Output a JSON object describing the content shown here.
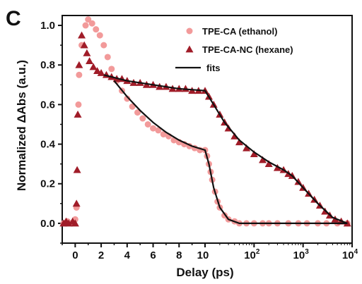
{
  "panel_label": "C",
  "colors": {
    "ethanol": "#f29a9a",
    "hexane": "#a01c28",
    "fit": "#111111",
    "axis": "#111111"
  },
  "chart_data": {
    "type": "scatter",
    "xlabel": "Delay (ps)",
    "ylabel": "Normalized ΔAbs (a.u.)",
    "x_scale": "linear from -1 to 10 ps, logarithmic from 10 to 10000 ps",
    "xlim": [
      -1,
      10000
    ],
    "ylim": [
      -0.1,
      1.05
    ],
    "x_ticks_linear": [
      "0",
      "2",
      "4",
      "6",
      "8"
    ],
    "x_ticks_log": [
      {
        "base": "10",
        "exp": ""
      },
      {
        "base": "10",
        "exp": "2"
      },
      {
        "base": "10",
        "exp": "3"
      },
      {
        "base": "10",
        "exp": "4"
      }
    ],
    "y_ticks": [
      "0.0",
      "0.2",
      "0.4",
      "0.6",
      "0.8",
      "1.0"
    ],
    "legend_position": "top-right",
    "legend": [
      {
        "label": "TPE-CA (ethanol)",
        "marker": "circle"
      },
      {
        "label": "TPE-CA-NC (hexane)",
        "marker": "triangle"
      },
      {
        "label": "fits",
        "marker": "line"
      }
    ],
    "series": [
      {
        "name": "TPE-CA (ethanol)",
        "marker": "circle",
        "points": [
          [
            -0.9,
            0.0
          ],
          [
            -0.6,
            0.01
          ],
          [
            -0.3,
            0.0
          ],
          [
            0.0,
            0.02
          ],
          [
            0.1,
            0.08
          ],
          [
            0.25,
            0.6
          ],
          [
            0.3,
            0.75
          ],
          [
            0.5,
            0.9
          ],
          [
            0.8,
            1.0
          ],
          [
            1.0,
            1.03
          ],
          [
            1.3,
            1.01
          ],
          [
            1.6,
            0.98
          ],
          [
            1.9,
            0.95
          ],
          [
            2.2,
            0.9
          ],
          [
            2.5,
            0.84
          ],
          [
            2.8,
            0.78
          ],
          [
            3.2,
            0.72
          ],
          [
            3.6,
            0.67
          ],
          [
            4.0,
            0.63
          ],
          [
            4.4,
            0.59
          ],
          [
            4.8,
            0.56
          ],
          [
            5.2,
            0.53
          ],
          [
            5.6,
            0.5
          ],
          [
            6.0,
            0.48
          ],
          [
            6.4,
            0.47
          ],
          [
            6.8,
            0.45
          ],
          [
            7.2,
            0.44
          ],
          [
            7.6,
            0.42
          ],
          [
            8.0,
            0.41
          ],
          [
            8.4,
            0.4
          ],
          [
            8.8,
            0.39
          ],
          [
            9.2,
            0.38
          ],
          [
            9.6,
            0.37
          ],
          [
            10,
            0.37
          ],
          [
            11,
            0.34
          ],
          [
            12,
            0.3
          ],
          [
            13,
            0.26
          ],
          [
            14,
            0.22
          ],
          [
            16,
            0.16
          ],
          [
            18,
            0.11
          ],
          [
            20,
            0.08
          ],
          [
            25,
            0.04
          ],
          [
            30,
            0.02
          ],
          [
            40,
            0.01
          ],
          [
            50,
            0.0
          ],
          [
            70,
            0.0
          ],
          [
            100,
            0.0
          ],
          [
            150,
            0.0
          ],
          [
            200,
            0.0
          ],
          [
            300,
            0.0
          ],
          [
            500,
            0.0
          ],
          [
            800,
            0.0
          ],
          [
            1200,
            0.0
          ],
          [
            2000,
            0.0
          ],
          [
            3000,
            0.0
          ],
          [
            5000,
            0.0
          ],
          [
            8000,
            0.0
          ]
        ]
      },
      {
        "name": "TPE-CA-NC (hexane)",
        "marker": "triangle",
        "points": [
          [
            -0.9,
            0.0
          ],
          [
            -0.7,
            0.01
          ],
          [
            -0.5,
            0.0
          ],
          [
            -0.2,
            0.01
          ],
          [
            0.0,
            0.0
          ],
          [
            0.1,
            0.1
          ],
          [
            0.15,
            0.27
          ],
          [
            0.2,
            0.55
          ],
          [
            0.3,
            0.8
          ],
          [
            0.5,
            0.95
          ],
          [
            0.7,
            0.9
          ],
          [
            0.9,
            0.86
          ],
          [
            1.1,
            0.82
          ],
          [
            1.4,
            0.79
          ],
          [
            1.7,
            0.77
          ],
          [
            2.0,
            0.76
          ],
          [
            2.4,
            0.75
          ],
          [
            2.8,
            0.74
          ],
          [
            3.2,
            0.73
          ],
          [
            3.6,
            0.73
          ],
          [
            4.0,
            0.72
          ],
          [
            4.5,
            0.71
          ],
          [
            5.0,
            0.71
          ],
          [
            5.5,
            0.7
          ],
          [
            6.0,
            0.7
          ],
          [
            6.5,
            0.69
          ],
          [
            7.0,
            0.69
          ],
          [
            7.5,
            0.68
          ],
          [
            8.0,
            0.68
          ],
          [
            8.5,
            0.68
          ],
          [
            9.0,
            0.67
          ],
          [
            9.5,
            0.67
          ],
          [
            10,
            0.67
          ],
          [
            12,
            0.64
          ],
          [
            15,
            0.6
          ],
          [
            20,
            0.55
          ],
          [
            25,
            0.51
          ],
          [
            30,
            0.48
          ],
          [
            40,
            0.44
          ],
          [
            50,
            0.41
          ],
          [
            70,
            0.38
          ],
          [
            100,
            0.35
          ],
          [
            150,
            0.32
          ],
          [
            200,
            0.3
          ],
          [
            300,
            0.28
          ],
          [
            400,
            0.27
          ],
          [
            500,
            0.25
          ],
          [
            600,
            0.24
          ],
          [
            800,
            0.21
          ],
          [
            1000,
            0.18
          ],
          [
            1300,
            0.15
          ],
          [
            1700,
            0.12
          ],
          [
            2200,
            0.09
          ],
          [
            2800,
            0.06
          ],
          [
            3500,
            0.04
          ],
          [
            4500,
            0.02
          ],
          [
            6000,
            0.01
          ],
          [
            8000,
            0.0
          ]
        ]
      }
    ],
    "fits": [
      {
        "points": [
          [
            3.0,
            0.72
          ],
          [
            4,
            0.64
          ],
          [
            5,
            0.57
          ],
          [
            6,
            0.51
          ],
          [
            7,
            0.46
          ],
          [
            8,
            0.42
          ],
          [
            9,
            0.39
          ],
          [
            10,
            0.37
          ],
          [
            12,
            0.3
          ],
          [
            15,
            0.18
          ],
          [
            20,
            0.08
          ],
          [
            30,
            0.02
          ],
          [
            50,
            0.0
          ],
          [
            100,
            0.0
          ],
          [
            1000,
            0.0
          ],
          [
            8000,
            0.0
          ]
        ]
      },
      {
        "points": [
          [
            2.2,
            0.75
          ],
          [
            4,
            0.72
          ],
          [
            6,
            0.7
          ],
          [
            8,
            0.68
          ],
          [
            10,
            0.67
          ],
          [
            15,
            0.6
          ],
          [
            25,
            0.51
          ],
          [
            50,
            0.42
          ],
          [
            100,
            0.36
          ],
          [
            200,
            0.31
          ],
          [
            400,
            0.27
          ],
          [
            600,
            0.24
          ],
          [
            1000,
            0.18
          ],
          [
            2000,
            0.1
          ],
          [
            4000,
            0.03
          ],
          [
            8000,
            0.0
          ]
        ]
      }
    ]
  }
}
